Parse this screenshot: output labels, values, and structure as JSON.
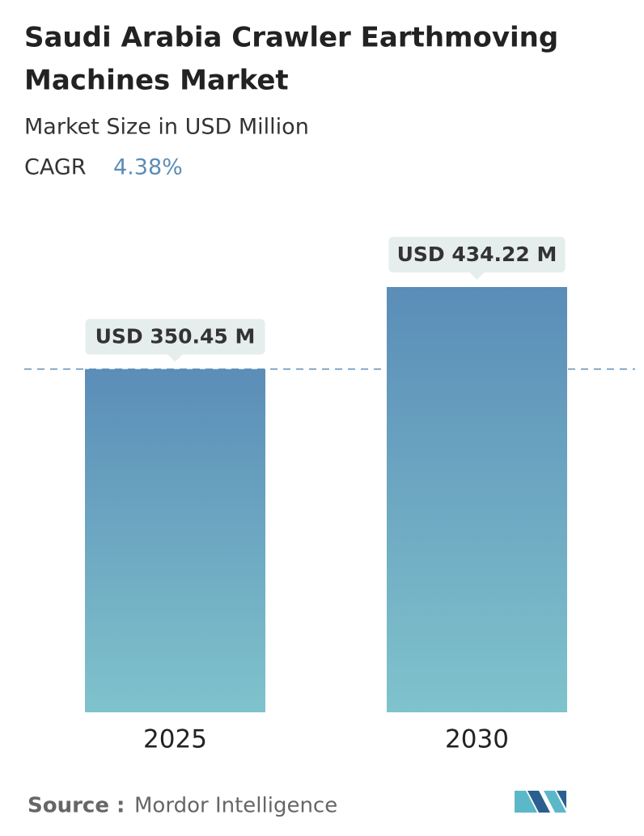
{
  "chart_data": {
    "type": "bar",
    "title_lines": [
      "Saudi Arabia Crawler Earthmoving",
      "Machines Market"
    ],
    "subtitle": "Market Size in USD Million",
    "cagr_label": "CAGR",
    "cagr_value": "4.38%",
    "categories": [
      "2025",
      "2030"
    ],
    "values": [
      350.45,
      434.22
    ],
    "value_labels": [
      "USD 350.45 M",
      "USD 434.22 M"
    ],
    "colors": [
      "#5b8db8",
      "#7fc3cc"
    ],
    "source_label": "Source :",
    "source": "Mordor Intelligence"
  }
}
